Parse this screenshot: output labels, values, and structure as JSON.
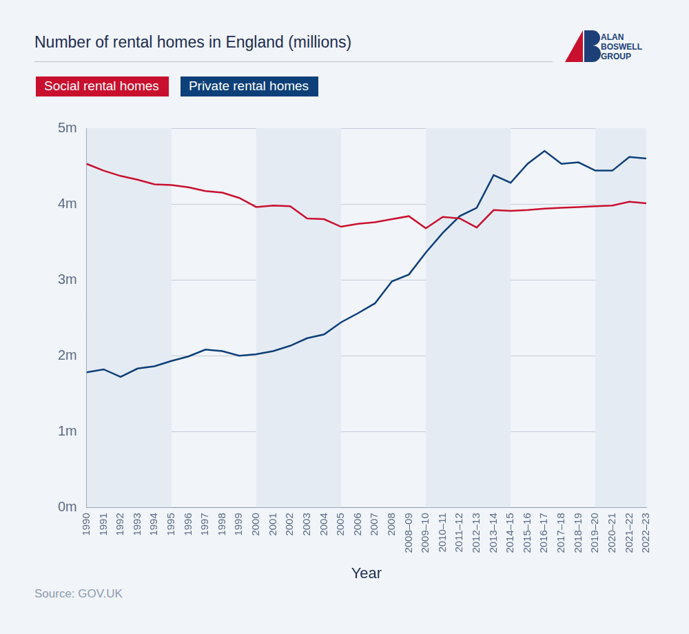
{
  "chart_data": {
    "type": "line",
    "title": "Number of rental homes in England (millions)",
    "logo": [
      "ALAN",
      "BOSWELL",
      "GROUP"
    ],
    "source": "Source: GOV.UK",
    "x_label": "Year",
    "categories": [
      "1990",
      "1991",
      "1992",
      "1993",
      "1994",
      "1995",
      "1996",
      "1997",
      "1998",
      "1999",
      "2000",
      "2001",
      "2002",
      "2003",
      "2004",
      "2005",
      "2006",
      "2007",
      "2008",
      "2008–09",
      "2009–10",
      "2010–11",
      "2011–12",
      "2012–13",
      "2013–14",
      "2014–15",
      "2015–16",
      "2016–17",
      "2017–18",
      "2018–19",
      "2019–20",
      "2020–21",
      "2021–22",
      "2022–23"
    ],
    "series": [
      {
        "name": "Social rental homes",
        "color": "#c8102e",
        "values": [
          4.53,
          4.44,
          4.37,
          4.32,
          4.26,
          4.25,
          4.22,
          4.17,
          4.15,
          4.08,
          3.96,
          3.98,
          3.97,
          3.81,
          3.8,
          3.7,
          3.74,
          3.76,
          3.8,
          3.84,
          3.68,
          3.83,
          3.81,
          3.69,
          3.92,
          3.91,
          3.92,
          3.94,
          3.95,
          3.96,
          3.97,
          3.98,
          4.03,
          4.01
        ]
      },
      {
        "name": "Private rental homes",
        "color": "#0d3f78",
        "values": [
          1.78,
          1.82,
          1.72,
          1.83,
          1.86,
          1.93,
          1.99,
          2.08,
          2.06,
          2.0,
          2.02,
          2.06,
          2.13,
          2.23,
          2.28,
          2.44,
          2.56,
          2.69,
          2.98,
          3.07,
          3.36,
          3.62,
          3.84,
          3.95,
          4.38,
          4.28,
          4.53,
          4.7,
          4.53,
          4.55,
          4.44,
          4.44,
          4.62,
          4.6
        ]
      }
    ],
    "ylim": [
      0,
      5
    ],
    "yticks": [
      {
        "value": 0,
        "label": "0m"
      },
      {
        "value": 1,
        "label": "1m"
      },
      {
        "value": 2,
        "label": "2m"
      },
      {
        "value": 3,
        "label": "3m"
      },
      {
        "value": 4,
        "label": "4m"
      },
      {
        "value": 5,
        "label": "5m"
      }
    ],
    "grid": true,
    "legend": "top-left"
  }
}
